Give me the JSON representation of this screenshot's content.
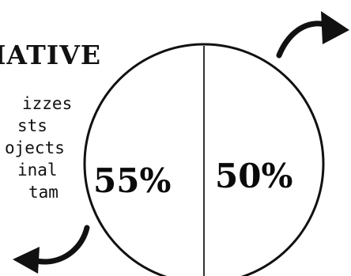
{
  "heading": "IATIVE",
  "items": [
    "izzes",
    "sts",
    "ojects",
    "inal",
    "tam"
  ],
  "circle": {
    "left_percent": "55%",
    "right_percent": "50%"
  },
  "icons": {
    "top_arrow": "curved-arrow-up-right-icon",
    "bottom_arrow": "curved-arrow-down-left-icon"
  },
  "colors": {
    "ink": "#111111",
    "background": "#ffffff"
  }
}
